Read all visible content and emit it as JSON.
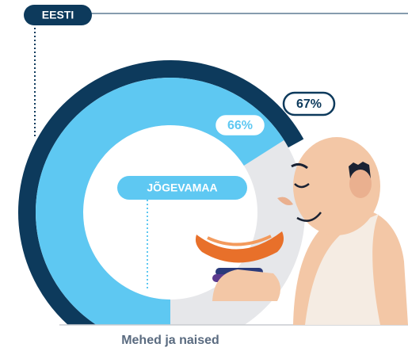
{
  "chart_data": {
    "type": "radial",
    "series": [
      {
        "name": "EESTI",
        "value": 67,
        "value_label": "67%",
        "color": "#0d3a5c"
      },
      {
        "name": "JÕGEVAMAA",
        "value": 66,
        "value_label": "66%",
        "color": "#5ec8f2"
      }
    ],
    "x_label": "Mehed ja naised"
  }
}
